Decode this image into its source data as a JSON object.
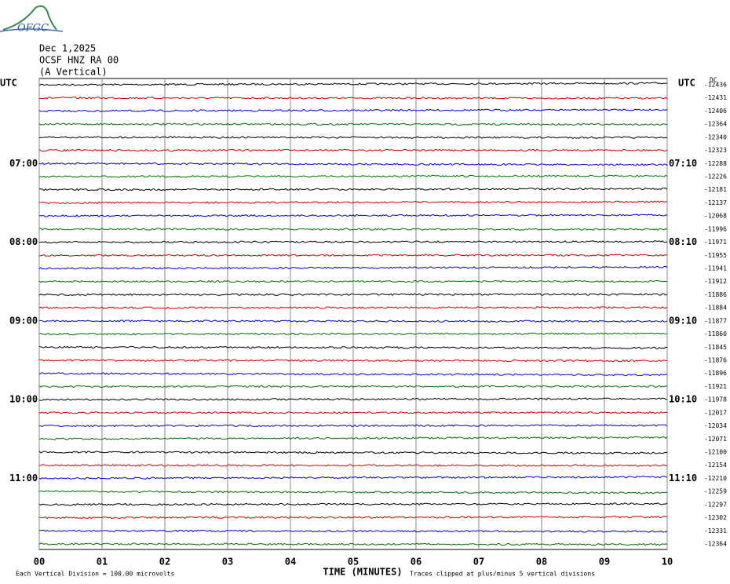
{
  "header": {
    "logo": "OFGC",
    "date": "Dec 1,2025",
    "station": "OCSF HNZ RA 00",
    "component": "(A Vertical)"
  },
  "left_labels": [
    "UTC",
    "07:00",
    "08:00",
    "09:00",
    "10:00",
    "11:00"
  ],
  "right_labels": [
    "UTC",
    "07:10",
    "08:10",
    "09:10",
    "10:10",
    "11:10"
  ],
  "dc_label": "DC",
  "offsets": [
    -12436,
    -12431,
    -12406,
    -12364,
    -12340,
    -12323,
    -12288,
    -12226,
    -12181,
    -12137,
    -12068,
    -11996,
    -11971,
    -11955,
    -11941,
    -11912,
    -11886,
    -11884,
    -11877,
    -11860,
    -11845,
    -11876,
    -11896,
    -11921,
    -11978,
    -12017,
    -12034,
    -12071,
    -12100,
    -12154,
    -12210,
    -12259,
    -12297,
    -12302,
    -12331,
    -12364
  ],
  "trace_colors": [
    "#000000",
    "#d00000",
    "#0000d0",
    "#007000"
  ],
  "x_axis": {
    "ticks": [
      "00",
      "01",
      "02",
      "03",
      "04",
      "05",
      "06",
      "07",
      "08",
      "09",
      "10"
    ],
    "title": "TIME (MINUTES)"
  },
  "footer": {
    "scale_note": "Each Vertical Division =  100.00 microvolts",
    "clip_note": "Traces clipped at plus/minus 5 vertical divisions"
  }
}
